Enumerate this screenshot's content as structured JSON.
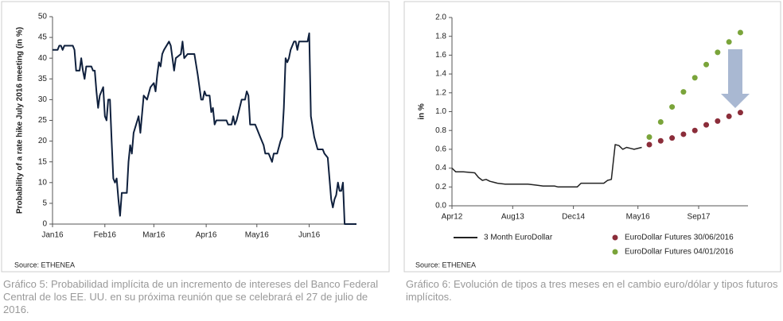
{
  "chart_data": [
    {
      "type": "line",
      "ylabel": "Probability of a rate hike July 2016 meeting (in %)",
      "source": "Source: ETHENEA",
      "caption": "Gráfico 5: Probabilidad implícita de un incremento de intereses del Banco Federal Central de los EE. UU. en su próxima reunión que se celebrará el 27 de julio de 2016.",
      "xlim": [
        0,
        180
      ],
      "xticks": [
        {
          "value": 0,
          "label": "Jan16"
        },
        {
          "value": 31,
          "label": "Feb16"
        },
        {
          "value": 60,
          "label": "Mar16"
        },
        {
          "value": 91,
          "label": "Apr16"
        },
        {
          "value": 121,
          "label": "May16"
        },
        {
          "value": 152,
          "label": "Jun16"
        }
      ],
      "ylim": [
        0,
        50
      ],
      "yticks": [
        0,
        5,
        10,
        15,
        20,
        25,
        30,
        35,
        40,
        45,
        50
      ],
      "series": [
        {
          "color": "#0f203d",
          "x": [
            0,
            3,
            4,
            5,
            6,
            7,
            12,
            13,
            14,
            16,
            17,
            18,
            19,
            20,
            23,
            24,
            25,
            26,
            27,
            28,
            30,
            31,
            32,
            33,
            34,
            35,
            36,
            37,
            38,
            39,
            40,
            41,
            44,
            45,
            46,
            47,
            48,
            51,
            52,
            54,
            56,
            58,
            60,
            61,
            62,
            63,
            64,
            65,
            66,
            69,
            70,
            72,
            73,
            76,
            77,
            78,
            80,
            82,
            84,
            86,
            88,
            89,
            90,
            91,
            93,
            94,
            95,
            96,
            97,
            103,
            104,
            106,
            107,
            108,
            109,
            112,
            114,
            115,
            116,
            117,
            120,
            121,
            123,
            125,
            126,
            128,
            130,
            131,
            133,
            135,
            136,
            137,
            138,
            139,
            140,
            141,
            143,
            144,
            145,
            146,
            151,
            152,
            153,
            155,
            157,
            160,
            161,
            163,
            165,
            166,
            167,
            168,
            169,
            170,
            171,
            172,
            173,
            174,
            180
          ],
          "values": [
            42,
            42,
            43,
            43,
            42,
            43,
            43,
            42,
            37,
            37,
            40,
            37,
            35,
            38,
            38,
            37,
            37,
            32,
            28,
            31,
            33,
            26,
            25,
            30,
            30,
            20,
            11,
            10,
            11,
            6,
            2,
            7.5,
            7.5,
            15,
            19,
            17,
            22,
            26,
            22,
            31,
            30,
            33,
            34,
            32,
            36,
            39,
            38,
            41,
            42,
            44,
            43,
            37,
            40,
            41,
            44,
            40,
            41,
            41,
            41,
            36,
            30,
            30,
            32,
            31,
            31,
            27,
            28,
            24,
            25,
            25,
            24,
            24,
            26,
            24,
            25,
            30,
            30,
            32,
            31,
            24,
            24,
            23,
            21,
            19,
            17,
            17,
            15,
            17,
            17,
            20,
            21,
            28,
            40,
            39,
            40,
            42,
            44,
            44,
            42,
            44,
            44,
            46,
            26,
            21,
            18,
            18,
            17,
            16,
            6,
            4,
            6,
            7,
            10,
            8,
            8,
            10,
            0,
            0,
            0
          ]
        }
      ]
    },
    {
      "type": "line",
      "ylabel": "in %",
      "source": "Source: ETHENEA",
      "caption": "Gráfico 6: Evolución de tipos a tres meses en el cambio euro/dólar y tipos futuros implícitos.",
      "xlim": [
        0,
        78
      ],
      "xticks": [
        {
          "value": 0,
          "label": "Apr12"
        },
        {
          "value": 16,
          "label": "Aug13"
        },
        {
          "value": 32,
          "label": "Dec14"
        },
        {
          "value": 49,
          "label": "May16"
        },
        {
          "value": 65,
          "label": "Sep17"
        }
      ],
      "ylim": [
        0,
        2
      ],
      "yticks": [
        {
          "value": 0,
          "label": "0.0"
        },
        {
          "value": 0.2,
          "label": "0.2"
        },
        {
          "value": 0.4,
          "label": "0.4"
        },
        {
          "value": 0.6,
          "label": "0.6"
        },
        {
          "value": 0.8,
          "label": "0.8"
        },
        {
          "value": 1,
          "label": "1.0"
        },
        {
          "value": 1.2,
          "label": "1.2"
        },
        {
          "value": 1.4,
          "label": "1.4"
        },
        {
          "value": 1.6,
          "label": "1.6"
        },
        {
          "value": 1.8,
          "label": "1.8"
        },
        {
          "value": 2,
          "label": "2.0"
        }
      ],
      "series": [
        {
          "name": "3 Month EuroDollar",
          "type": "line",
          "color": "#222222",
          "x": [
            0,
            1,
            3,
            6,
            7,
            8,
            9,
            10,
            11,
            12,
            14,
            20,
            22,
            24,
            27,
            28,
            33,
            34,
            40,
            41,
            42,
            43,
            44,
            45,
            46,
            47,
            48,
            50
          ],
          "values": [
            0.4,
            0.36,
            0.36,
            0.35,
            0.3,
            0.27,
            0.28,
            0.26,
            0.25,
            0.24,
            0.23,
            0.23,
            0.22,
            0.21,
            0.21,
            0.2,
            0.2,
            0.24,
            0.24,
            0.27,
            0.28,
            0.65,
            0.64,
            0.6,
            0.62,
            0.61,
            0.6,
            0.62
          ]
        },
        {
          "name": "EuroDollar Futures 30/06/2016",
          "type": "scatter",
          "color": "#8b2d3a",
          "x": [
            52,
            55,
            58,
            61,
            64,
            67,
            70,
            73,
            76
          ],
          "values": [
            0.65,
            0.69,
            0.72,
            0.76,
            0.8,
            0.86,
            0.9,
            0.95,
            0.99
          ]
        },
        {
          "name": "EuroDollar Futures 04/01/2016",
          "type": "scatter",
          "color": "#7aa43a",
          "x": [
            52,
            55,
            58,
            61,
            64,
            67,
            70,
            73,
            76
          ],
          "values": [
            0.73,
            0.89,
            1.05,
            1.21,
            1.36,
            1.5,
            1.63,
            1.74,
            1.84
          ]
        }
      ]
    }
  ]
}
